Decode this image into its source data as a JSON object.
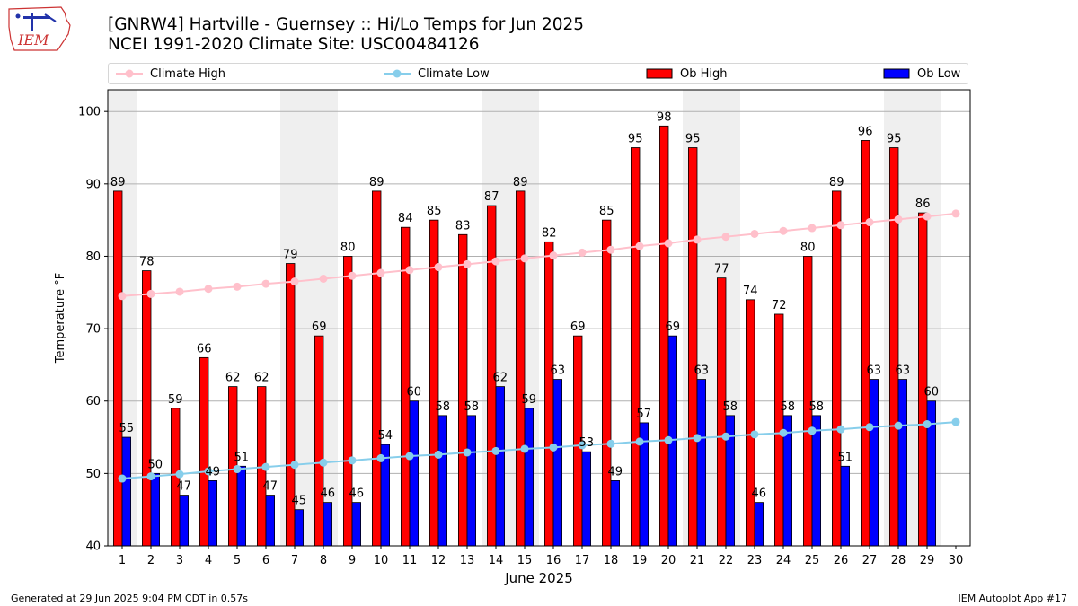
{
  "header": {
    "title": "[GNRW4] Hartville - Guernsey :: Hi/Lo Temps for Jun 2025",
    "subtitle": "NCEI 1991-2020 Climate Site: USC00484126",
    "logo_text": "IEM"
  },
  "legend": {
    "climate_high": "Climate High",
    "climate_low": "Climate Low",
    "ob_high": "Ob High",
    "ob_low": "Ob Low"
  },
  "colors": {
    "ob_high": "#ff0000",
    "ob_low": "#0000ff",
    "climate_high": "#ffc0cb",
    "climate_low": "#87ceeb",
    "weekend_band": "#efefef"
  },
  "footer": {
    "generated": "Generated at 29 Jun 2025 9:04 PM CDT in 0.57s",
    "app": "IEM Autoplot App #17"
  },
  "chart_data": {
    "type": "bar",
    "xlabel": "June 2025",
    "ylabel": "Temperature °F",
    "ylim": [
      40,
      103
    ],
    "yticks": [
      40,
      50,
      60,
      70,
      80,
      90,
      100
    ],
    "grid": true,
    "legend_position": "top",
    "categories": [
      "1",
      "2",
      "3",
      "4",
      "5",
      "6",
      "7",
      "8",
      "9",
      "10",
      "11",
      "12",
      "13",
      "14",
      "15",
      "16",
      "17",
      "18",
      "19",
      "20",
      "21",
      "22",
      "23",
      "24",
      "25",
      "26",
      "27",
      "28",
      "29",
      "30"
    ],
    "weekend_days": [
      1,
      7,
      8,
      14,
      15,
      21,
      22,
      28,
      29
    ],
    "series": [
      {
        "name": "Ob High",
        "type": "bar",
        "values": [
          89,
          78,
          59,
          66,
          62,
          62,
          79,
          69,
          80,
          89,
          84,
          85,
          83,
          87,
          89,
          82,
          69,
          85,
          95,
          98,
          95,
          77,
          74,
          72,
          80,
          89,
          96,
          95,
          86,
          null
        ]
      },
      {
        "name": "Ob Low",
        "type": "bar",
        "values": [
          55,
          50,
          47,
          49,
          51,
          47,
          45,
          46,
          46,
          54,
          60,
          58,
          58,
          62,
          59,
          63,
          53,
          49,
          57,
          69,
          63,
          58,
          46,
          58,
          58,
          51,
          63,
          63,
          60,
          null
        ]
      },
      {
        "name": "Climate High",
        "type": "line",
        "values": [
          74.5,
          74.8,
          75.1,
          75.5,
          75.8,
          76.2,
          76.5,
          76.9,
          77.3,
          77.7,
          78.1,
          78.5,
          78.9,
          79.3,
          79.7,
          80.1,
          80.5,
          80.9,
          81.4,
          81.8,
          82.3,
          82.7,
          83.1,
          83.5,
          83.9,
          84.3,
          84.7,
          85.1,
          85.5,
          85.9
        ]
      },
      {
        "name": "Climate Low",
        "type": "line",
        "values": [
          49.3,
          49.6,
          49.9,
          50.3,
          50.6,
          50.9,
          51.2,
          51.5,
          51.8,
          52.1,
          52.4,
          52.6,
          52.9,
          53.1,
          53.4,
          53.6,
          53.9,
          54.1,
          54.4,
          54.6,
          54.9,
          55.1,
          55.4,
          55.6,
          55.9,
          56.1,
          56.4,
          56.6,
          56.8,
          57.1
        ]
      }
    ]
  }
}
